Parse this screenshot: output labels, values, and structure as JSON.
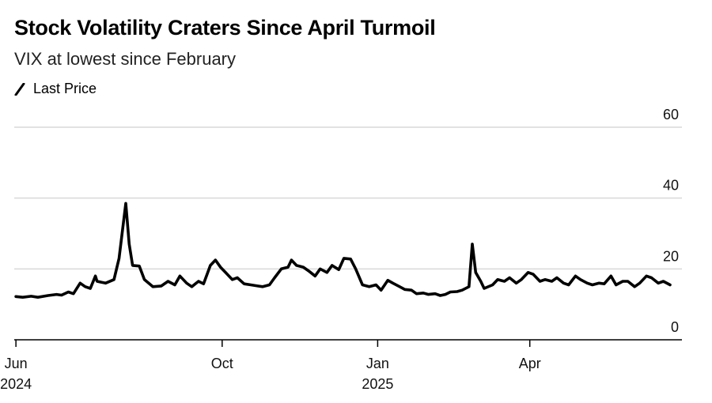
{
  "title": "Stock Volatility Craters Since April Turmoil",
  "subtitle": "VIX at lowest since February",
  "legend": {
    "label": "Last Price",
    "icon": "line-swatch-icon"
  },
  "colors": {
    "line": "#000000",
    "grid": "#d9d9d9",
    "axis": "#000000"
  },
  "chart_data": {
    "type": "line",
    "title": "Stock Volatility Craters Since April Turmoil",
    "subtitle": "VIX at lowest since February",
    "xlabel": "",
    "ylabel": "",
    "ylim": [
      0,
      60
    ],
    "xlim": [
      "2024-05-31",
      "2025-06-30"
    ],
    "y_axis_position": "right",
    "grid": true,
    "legend_position": "top-left",
    "yticks": [
      {
        "value": 0,
        "label": "0"
      },
      {
        "value": 20,
        "label": "20"
      },
      {
        "value": 40,
        "label": "40"
      },
      {
        "value": 60,
        "label": "60"
      }
    ],
    "xticks": [
      {
        "date": "2024-06-01",
        "label": "Jun",
        "sublabel": "2024"
      },
      {
        "date": "2024-10-01",
        "label": "Oct",
        "sublabel": ""
      },
      {
        "date": "2025-01-01",
        "label": "Jan",
        "sublabel": "2025"
      },
      {
        "date": "2025-04-01",
        "label": "Apr",
        "sublabel": ""
      }
    ],
    "series": [
      {
        "name": "Last Price",
        "points": [
          [
            "2024-06-01",
            12.2
          ],
          [
            "2024-06-05",
            12.0
          ],
          [
            "2024-06-10",
            12.3
          ],
          [
            "2024-06-14",
            12.0
          ],
          [
            "2024-06-20",
            12.5
          ],
          [
            "2024-06-25",
            12.8
          ],
          [
            "2024-06-28",
            12.6
          ],
          [
            "2024-07-02",
            13.5
          ],
          [
            "2024-07-05",
            13.0
          ],
          [
            "2024-07-09",
            16.0
          ],
          [
            "2024-07-12",
            15.0
          ],
          [
            "2024-07-15",
            14.5
          ],
          [
            "2024-07-18",
            18.0
          ],
          [
            "2024-07-19",
            16.5
          ],
          [
            "2024-07-24",
            16.0
          ],
          [
            "2024-07-29",
            17.0
          ],
          [
            "2024-08-01",
            23.0
          ],
          [
            "2024-08-05",
            38.5
          ],
          [
            "2024-08-07",
            27.0
          ],
          [
            "2024-08-09",
            21.0
          ],
          [
            "2024-08-13",
            20.8
          ],
          [
            "2024-08-16",
            17.0
          ],
          [
            "2024-08-21",
            15.0
          ],
          [
            "2024-08-26",
            15.2
          ],
          [
            "2024-08-30",
            16.5
          ],
          [
            "2024-09-03",
            15.5
          ],
          [
            "2024-09-06",
            18.0
          ],
          [
            "2024-09-10",
            16.0
          ],
          [
            "2024-09-13",
            15.0
          ],
          [
            "2024-09-17",
            16.5
          ],
          [
            "2024-09-20",
            15.8
          ],
          [
            "2024-09-24",
            21.0
          ],
          [
            "2024-09-27",
            22.5
          ],
          [
            "2024-09-30",
            20.5
          ],
          [
            "2024-10-03",
            19.0
          ],
          [
            "2024-10-07",
            17.0
          ],
          [
            "2024-10-10",
            17.5
          ],
          [
            "2024-10-14",
            15.8
          ],
          [
            "2024-10-18",
            15.5
          ],
          [
            "2024-10-22",
            15.2
          ],
          [
            "2024-10-25",
            15.0
          ],
          [
            "2024-10-29",
            15.5
          ],
          [
            "2024-11-01",
            17.5
          ],
          [
            "2024-11-05",
            20.0
          ],
          [
            "2024-11-09",
            20.5
          ],
          [
            "2024-11-11",
            22.5
          ],
          [
            "2024-11-14",
            21.0
          ],
          [
            "2024-11-18",
            20.5
          ],
          [
            "2024-11-21",
            19.5
          ],
          [
            "2024-11-25",
            18.0
          ],
          [
            "2024-11-28",
            20.0
          ],
          [
            "2024-12-02",
            19.0
          ],
          [
            "2024-12-05",
            21.0
          ],
          [
            "2024-12-09",
            19.8
          ],
          [
            "2024-12-12",
            23.0
          ],
          [
            "2024-12-16",
            22.8
          ],
          [
            "2024-12-19",
            20.0
          ],
          [
            "2024-12-23",
            15.5
          ],
          [
            "2024-12-27",
            15.0
          ],
          [
            "2024-12-31",
            15.5
          ],
          [
            "2025-01-03",
            14.0
          ],
          [
            "2025-01-07",
            16.8
          ],
          [
            "2025-01-10",
            16.0
          ],
          [
            "2025-01-14",
            15.0
          ],
          [
            "2025-01-17",
            14.2
          ],
          [
            "2025-01-21",
            14.0
          ],
          [
            "2025-01-24",
            13.0
          ],
          [
            "2025-01-28",
            13.2
          ],
          [
            "2025-01-31",
            12.8
          ],
          [
            "2025-02-04",
            13.0
          ],
          [
            "2025-02-07",
            12.5
          ],
          [
            "2025-02-10",
            12.8
          ],
          [
            "2025-02-13",
            13.5
          ],
          [
            "2025-02-17",
            13.6
          ],
          [
            "2025-02-20",
            14.0
          ],
          [
            "2025-02-24",
            15.0
          ],
          [
            "2025-02-26",
            27.0
          ],
          [
            "2025-02-28",
            19.0
          ],
          [
            "2025-03-03",
            16.5
          ],
          [
            "2025-03-05",
            14.5
          ],
          [
            "2025-03-10",
            15.5
          ],
          [
            "2025-03-13",
            17.0
          ],
          [
            "2025-03-17",
            16.5
          ],
          [
            "2025-03-20",
            17.5
          ],
          [
            "2025-03-24",
            16.0
          ],
          [
            "2025-03-27",
            17.0
          ],
          [
            "2025-03-31",
            19.0
          ],
          [
            "2025-04-03",
            18.5
          ],
          [
            "2025-04-07",
            16.5
          ],
          [
            "2025-04-10",
            17.0
          ],
          [
            "2025-04-14",
            16.5
          ],
          [
            "2025-04-17",
            17.5
          ],
          [
            "2025-04-21",
            16.0
          ],
          [
            "2025-04-24",
            15.5
          ],
          [
            "2025-04-28",
            18.0
          ],
          [
            "2025-05-01",
            17.0
          ],
          [
            "2025-05-05",
            16.0
          ],
          [
            "2025-05-08",
            15.5
          ],
          [
            "2025-05-12",
            16.0
          ],
          [
            "2025-05-15",
            15.8
          ],
          [
            "2025-05-19",
            18.0
          ],
          [
            "2025-05-22",
            15.5
          ],
          [
            "2025-05-26",
            16.5
          ],
          [
            "2025-05-29",
            16.5
          ],
          [
            "2025-06-02",
            15.0
          ],
          [
            "2025-06-05",
            16.0
          ],
          [
            "2025-06-09",
            18.0
          ],
          [
            "2025-06-12",
            17.5
          ],
          [
            "2025-06-16",
            16.0
          ],
          [
            "2025-06-19",
            16.5
          ],
          [
            "2025-06-23",
            15.5
          ]
        ]
      }
    ]
  }
}
